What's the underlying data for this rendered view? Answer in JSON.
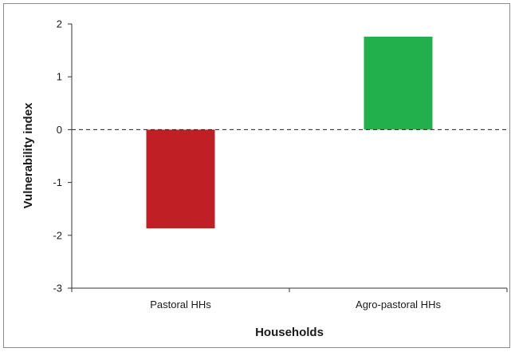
{
  "chart_data": {
    "type": "bar",
    "title": "",
    "xlabel": "Households",
    "ylabel": "Vulnerability index",
    "categories": [
      "Pastoral HHs",
      "Agro-pastoral HHs"
    ],
    "values": [
      -1.87,
      1.76
    ],
    "bar_colors": [
      "#c11f26",
      "#21b04b"
    ],
    "ylim": [
      -3,
      2
    ],
    "yticks": [
      2,
      1,
      0,
      -1,
      -2,
      -3
    ],
    "ytick_labels": [
      "2",
      "1",
      "0",
      "-1",
      "-2",
      "-3"
    ],
    "zero_line": "dashed",
    "grid": false,
    "legend": "none"
  }
}
